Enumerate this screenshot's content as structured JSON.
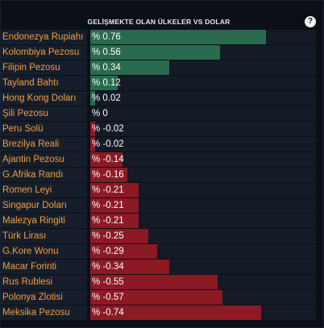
{
  "widget": {
    "title": "GELİŞMEKTE OLAN ÜLKELER VS DOLAR",
    "help_label": "?"
  },
  "colors": {
    "positive": "#2a6a4e",
    "negative": "#8b1a24",
    "label": "#f0a040"
  },
  "rows": [
    {
      "label": "Endonezya Rupiahı",
      "value_text": "% 0.76",
      "value": 0.76
    },
    {
      "label": "Kolombiya Pezosu",
      "value_text": "% 0.56",
      "value": 0.56
    },
    {
      "label": "Filipin Pezosu",
      "value_text": "% 0.34",
      "value": 0.34
    },
    {
      "label": "Tayland Bahtı",
      "value_text": "% 0.12",
      "value": 0.12
    },
    {
      "label": "Hong Kong Doları",
      "value_text": "% 0.02",
      "value": 0.02
    },
    {
      "label": "Şili Pezosu",
      "value_text": "% 0",
      "value": 0
    },
    {
      "label": "Peru Solü",
      "value_text": "% -0.02",
      "value": -0.02
    },
    {
      "label": "Brezilya Reali",
      "value_text": "% -0.02",
      "value": -0.02
    },
    {
      "label": "Ajantin Pezosu",
      "value_text": "% -0.14",
      "value": -0.14
    },
    {
      "label": "G.Afrika Randı",
      "value_text": "% -0.16",
      "value": -0.16
    },
    {
      "label": "Romen Leyi",
      "value_text": "% -0.21",
      "value": -0.21
    },
    {
      "label": "Singapur Doları",
      "value_text": "% -0.21",
      "value": -0.21
    },
    {
      "label": "Malezya Ringiti",
      "value_text": "% -0.21",
      "value": -0.21
    },
    {
      "label": "Türk Lirası",
      "value_text": "% -0.25",
      "value": -0.25
    },
    {
      "label": "G.Kore Wonu",
      "value_text": "% -0.29",
      "value": -0.29
    },
    {
      "label": "Macar Forinti",
      "value_text": "% -0.34",
      "value": -0.34
    },
    {
      "label": "Rus Rublesi",
      "value_text": "% -0.55",
      "value": -0.55
    },
    {
      "label": "Polonya Zlotisi",
      "value_text": "% -0.57",
      "value": -0.57
    },
    {
      "label": "Meksika Pezosu",
      "value_text": "% -0.74",
      "value": -0.74
    }
  ]
}
